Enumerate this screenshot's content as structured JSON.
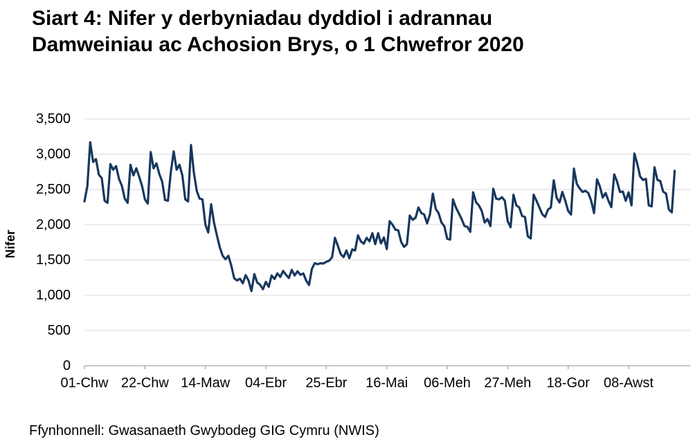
{
  "page": {
    "title_line1": "Siart 4: Nifer y derbyniadau dyddiol i adrannau",
    "title_line2": "Damweiniau ac Achosion Brys, o 1 Chwefror 2020",
    "source": "Ffynhonnell: Gwasanaeth Gwybodeg GIG Cymru (NWIS)"
  },
  "colors": {
    "line": "#17375E",
    "gridline": "#D9D9D9",
    "axis": "#A6A6A6",
    "text": "#000000"
  },
  "chart_data": {
    "type": "line",
    "title": "Siart 4: Nifer y derbyniadau dyddiol i adrannau Damweiniau ac Achosion Brys, o 1 Chwefror 2020",
    "xlabel": "",
    "ylabel": "Nifer",
    "ylim": [
      0,
      3500
    ],
    "grid": true,
    "legend": false,
    "ytick_values": [
      0,
      500,
      1000,
      1500,
      2000,
      2500,
      3000,
      3500
    ],
    "ytick_labels": [
      "0",
      "500",
      "1,000",
      "1,500",
      "2,000",
      "2,500",
      "3,000",
      "3,500"
    ],
    "xtick_labels": [
      "01-Chw",
      "22-Chw",
      "14-Maw",
      "04-Ebr",
      "25-Ebr",
      "16-Mai",
      "06-Meh",
      "27-Meh",
      "18-Gor",
      "08-Awst"
    ],
    "xtick_days": [
      0,
      21,
      42,
      63,
      84,
      105,
      126,
      147,
      168,
      189
    ],
    "x_domain_days": [
      0,
      210
    ],
    "values": [
      2330,
      2550,
      3170,
      2890,
      2930,
      2710,
      2660,
      2340,
      2310,
      2860,
      2780,
      2830,
      2650,
      2550,
      2370,
      2310,
      2850,
      2700,
      2800,
      2680,
      2550,
      2360,
      2300,
      3030,
      2800,
      2870,
      2720,
      2610,
      2350,
      2340,
      2750,
      3040,
      2780,
      2850,
      2700,
      2360,
      2330,
      3130,
      2740,
      2480,
      2370,
      2360,
      2000,
      1890,
      2290,
      2030,
      1850,
      1680,
      1560,
      1510,
      1560,
      1420,
      1240,
      1210,
      1235,
      1170,
      1285,
      1210,
      1060,
      1300,
      1180,
      1150,
      1085,
      1190,
      1120,
      1280,
      1230,
      1310,
      1260,
      1345,
      1290,
      1245,
      1360,
      1280,
      1340,
      1290,
      1310,
      1210,
      1145,
      1375,
      1455,
      1440,
      1455,
      1450,
      1475,
      1490,
      1540,
      1815,
      1700,
      1585,
      1540,
      1635,
      1525,
      1650,
      1635,
      1850,
      1765,
      1730,
      1815,
      1765,
      1880,
      1725,
      1880,
      1735,
      1820,
      1655,
      2050,
      2000,
      1930,
      1920,
      1755,
      1685,
      1725,
      2130,
      2070,
      2100,
      2245,
      2165,
      2145,
      2020,
      2145,
      2440,
      2225,
      2165,
      2030,
      1980,
      1800,
      1790,
      2360,
      2245,
      2165,
      2080,
      1980,
      1970,
      1900,
      2460,
      2320,
      2275,
      2195,
      2030,
      2080,
      1980,
      2510,
      2370,
      2360,
      2390,
      2340,
      2050,
      1965,
      2425,
      2275,
      2245,
      2125,
      2110,
      1835,
      1805,
      2425,
      2340,
      2245,
      2150,
      2110,
      2215,
      2245,
      2630,
      2385,
      2315,
      2465,
      2340,
      2195,
      2145,
      2795,
      2580,
      2515,
      2465,
      2480,
      2450,
      2340,
      2165,
      2645,
      2545,
      2385,
      2450,
      2340,
      2250,
      2715,
      2610,
      2465,
      2470,
      2340,
      2460,
      2275,
      3010,
      2865,
      2685,
      2635,
      2650,
      2275,
      2260,
      2815,
      2635,
      2620,
      2470,
      2440,
      2215,
      2175,
      2765
    ]
  }
}
